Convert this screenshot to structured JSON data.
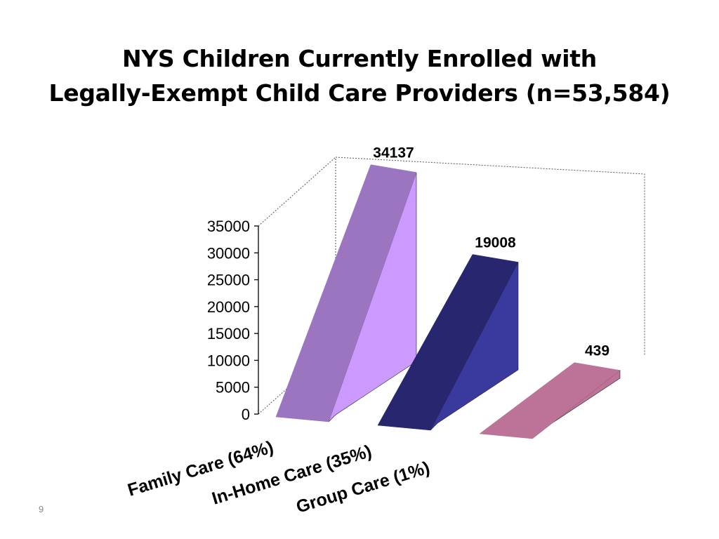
{
  "slide": {
    "number": "9"
  },
  "chart_data": {
    "type": "bar",
    "title": "NYS Children Currently Enrolled with Legally-Exempt Child Care Providers (n=53,584)",
    "title_lines": [
      "NYS Children Currently Enrolled with",
      "Legally-Exempt Child Care Providers (n=53,584)"
    ],
    "categories": [
      "Family Care (64%)",
      "In-Home Care (35%)",
      "Group Care (1%)"
    ],
    "values": [
      34137,
      19008,
      439
    ],
    "value_labels": [
      "34137",
      "19008",
      "439"
    ],
    "colors": [
      "#9B75BF",
      "#27266F",
      "#BD7398"
    ],
    "side_colors": [
      "#CC99FF",
      "#3A3A9E",
      "#BD7398"
    ],
    "ylim": [
      0,
      35000
    ],
    "yticks": [
      0,
      5000,
      10000,
      15000,
      20000,
      25000,
      30000,
      35000
    ],
    "ytick_labels": [
      "0",
      "5000",
      "10000",
      "15000",
      "20000",
      "25000",
      "30000",
      "35000"
    ],
    "xlabel": "",
    "ylabel": "",
    "style": "3d-perspective",
    "grid": false
  }
}
